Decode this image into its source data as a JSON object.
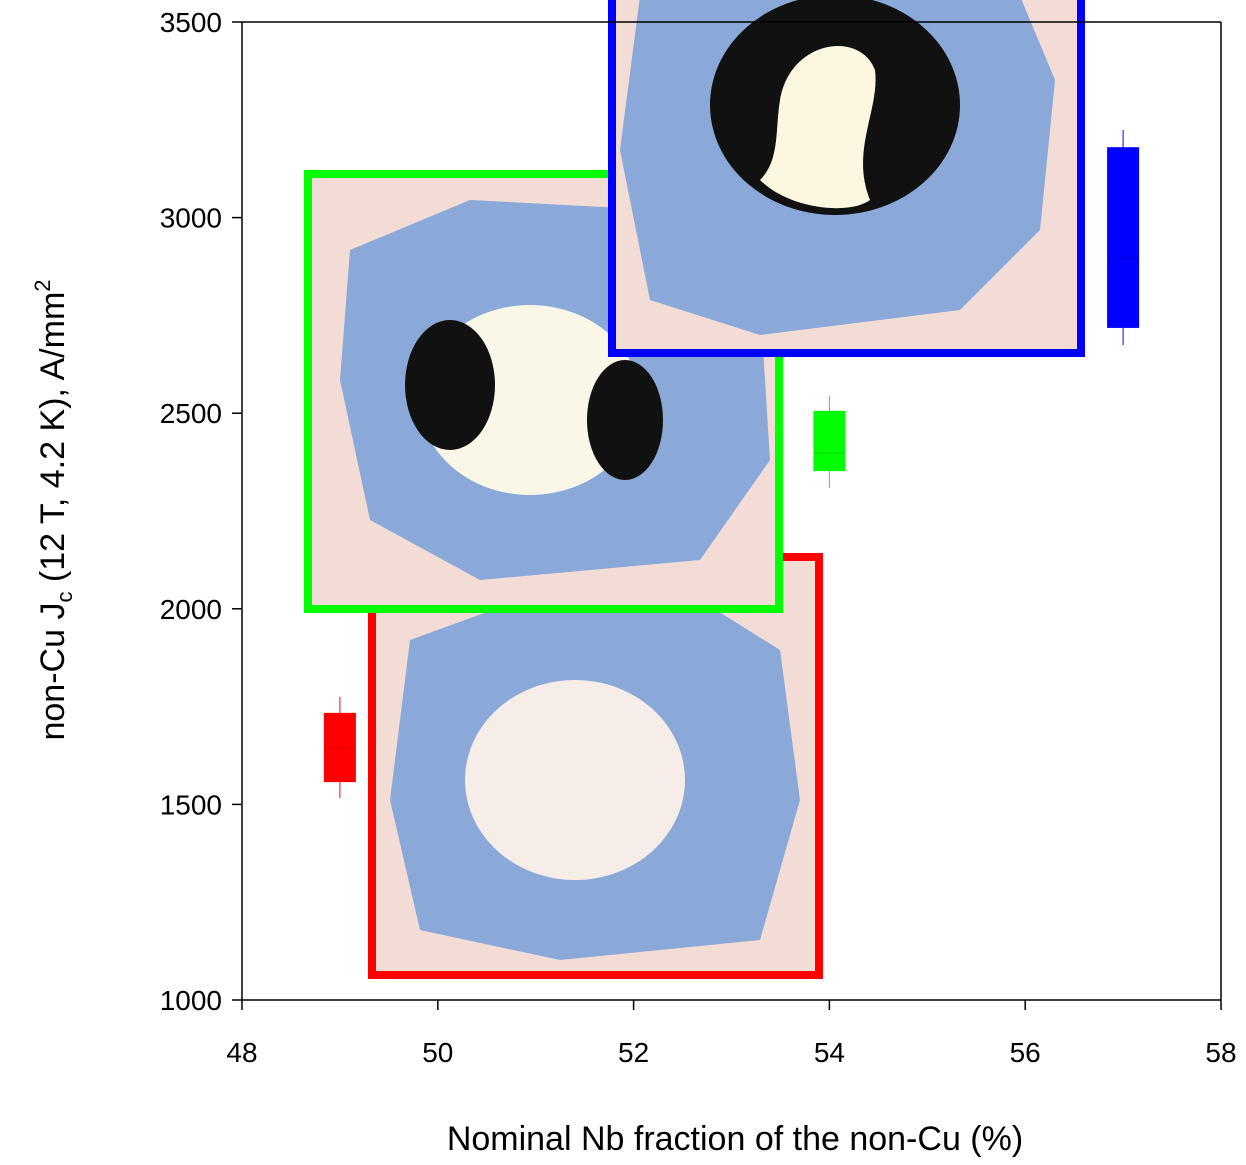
{
  "chart_data": {
    "type": "box",
    "xlabel": "Nominal Nb fraction of the non-Cu (%)",
    "ylabel_parts": [
      "non-Cu J",
      "c",
      " (12 T, 4.2 K), A/mm",
      "2"
    ],
    "xlim": [
      48,
      58
    ],
    "xticks": [
      48,
      50,
      52,
      54,
      56,
      58
    ],
    "ylim": [
      1000,
      3500
    ],
    "yticks": [
      1000,
      1500,
      2000,
      2500,
      3000,
      3500
    ],
    "grid": false,
    "boxes": [
      {
        "x": 49,
        "color": "#ff0000",
        "whislo": 1516,
        "q1": 1557,
        "med": 1644,
        "q3": 1734,
        "whishi": 1775
      },
      {
        "x": 54,
        "color": "#00ff00",
        "whislo": 2309,
        "q1": 2352,
        "med": 2398,
        "q3": 2506,
        "whishi": 2544
      },
      {
        "x": 57,
        "color": "#0000ff",
        "whislo": 2674,
        "q1": 2718,
        "med": 2897,
        "q3": 3180,
        "whishi": 3224
      }
    ]
  }
}
